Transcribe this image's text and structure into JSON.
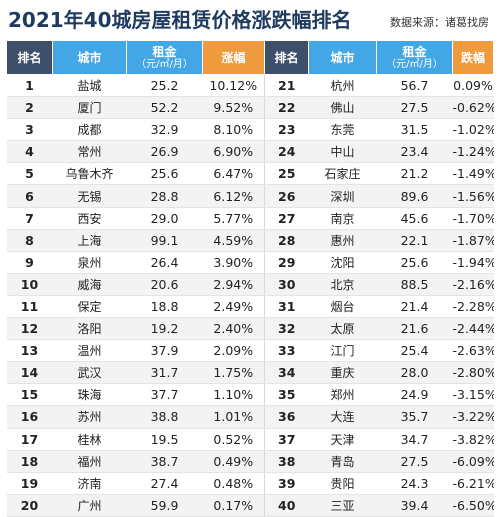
{
  "header": {
    "title": "2021年40城房屋租赁价格涨跌幅排名",
    "source": "数据来源：诸葛找房"
  },
  "columns": {
    "rank": "排名",
    "city": "城市",
    "rent": "租金",
    "rent_unit": "（元/㎡/月）",
    "rise": "涨幅",
    "fall": "跌幅"
  },
  "colors": {
    "dark": "#3d4f6b",
    "blue": "#43a7e6",
    "orange": "#f09a3e"
  },
  "rows": [
    {
      "l_rank": "1",
      "l_city": "盐城",
      "l_rent": "25.2",
      "l_change": "10.12%",
      "r_rank": "21",
      "r_city": "杭州",
      "r_rent": "56.7",
      "r_change": "0.09%"
    },
    {
      "l_rank": "2",
      "l_city": "厦门",
      "l_rent": "52.2",
      "l_change": "9.52%",
      "r_rank": "22",
      "r_city": "佛山",
      "r_rent": "27.5",
      "r_change": "-0.62%"
    },
    {
      "l_rank": "3",
      "l_city": "成都",
      "l_rent": "32.9",
      "l_change": "8.10%",
      "r_rank": "23",
      "r_city": "东莞",
      "r_rent": "31.5",
      "r_change": "-1.02%"
    },
    {
      "l_rank": "4",
      "l_city": "常州",
      "l_rent": "26.9",
      "l_change": "6.90%",
      "r_rank": "24",
      "r_city": "中山",
      "r_rent": "23.4",
      "r_change": "-1.24%"
    },
    {
      "l_rank": "5",
      "l_city": "乌鲁木齐",
      "l_rent": "25.6",
      "l_change": "6.47%",
      "r_rank": "25",
      "r_city": "石家庄",
      "r_rent": "21.2",
      "r_change": "-1.49%"
    },
    {
      "l_rank": "6",
      "l_city": "无锡",
      "l_rent": "28.8",
      "l_change": "6.12%",
      "r_rank": "26",
      "r_city": "深圳",
      "r_rent": "89.6",
      "r_change": "-1.56%"
    },
    {
      "l_rank": "7",
      "l_city": "西安",
      "l_rent": "29.0",
      "l_change": "5.77%",
      "r_rank": "27",
      "r_city": "南京",
      "r_rent": "45.6",
      "r_change": "-1.70%"
    },
    {
      "l_rank": "8",
      "l_city": "上海",
      "l_rent": "99.1",
      "l_change": "4.59%",
      "r_rank": "28",
      "r_city": "惠州",
      "r_rent": "22.1",
      "r_change": "-1.87%"
    },
    {
      "l_rank": "9",
      "l_city": "泉州",
      "l_rent": "26.4",
      "l_change": "3.90%",
      "r_rank": "29",
      "r_city": "沈阳",
      "r_rent": "25.6",
      "r_change": "-1.94%"
    },
    {
      "l_rank": "10",
      "l_city": "威海",
      "l_rent": "20.6",
      "l_change": "2.94%",
      "r_rank": "30",
      "r_city": "北京",
      "r_rent": "88.5",
      "r_change": "-2.16%"
    },
    {
      "l_rank": "11",
      "l_city": "保定",
      "l_rent": "18.8",
      "l_change": "2.49%",
      "r_rank": "31",
      "r_city": "烟台",
      "r_rent": "21.4",
      "r_change": "-2.28%"
    },
    {
      "l_rank": "12",
      "l_city": "洛阳",
      "l_rent": "19.2",
      "l_change": "2.40%",
      "r_rank": "32",
      "r_city": "太原",
      "r_rent": "21.6",
      "r_change": "-2.44%"
    },
    {
      "l_rank": "13",
      "l_city": "温州",
      "l_rent": "37.9",
      "l_change": "2.09%",
      "r_rank": "33",
      "r_city": "江门",
      "r_rent": "25.4",
      "r_change": "-2.63%"
    },
    {
      "l_rank": "14",
      "l_city": "武汉",
      "l_rent": "31.7",
      "l_change": "1.75%",
      "r_rank": "34",
      "r_city": "重庆",
      "r_rent": "28.0",
      "r_change": "-2.80%"
    },
    {
      "l_rank": "15",
      "l_city": "珠海",
      "l_rent": "37.7",
      "l_change": "1.10%",
      "r_rank": "35",
      "r_city": "郑州",
      "r_rent": "24.9",
      "r_change": "-3.15%"
    },
    {
      "l_rank": "16",
      "l_city": "苏州",
      "l_rent": "38.8",
      "l_change": "1.01%",
      "r_rank": "36",
      "r_city": "大连",
      "r_rent": "35.7",
      "r_change": "-3.22%"
    },
    {
      "l_rank": "17",
      "l_city": "桂林",
      "l_rent": "19.5",
      "l_change": "0.52%",
      "r_rank": "37",
      "r_city": "天津",
      "r_rent": "34.7",
      "r_change": "-3.82%"
    },
    {
      "l_rank": "18",
      "l_city": "福州",
      "l_rent": "38.7",
      "l_change": "0.49%",
      "r_rank": "38",
      "r_city": "青岛",
      "r_rent": "27.5",
      "r_change": "-6.09%"
    },
    {
      "l_rank": "19",
      "l_city": "济南",
      "l_rent": "27.4",
      "l_change": "0.48%",
      "r_rank": "39",
      "r_city": "贵阳",
      "r_rent": "24.3",
      "r_change": "-6.21%"
    },
    {
      "l_rank": "20",
      "l_city": "广州",
      "l_rent": "59.9",
      "l_change": "0.17%",
      "r_rank": "40",
      "r_city": "三亚",
      "r_rent": "39.4",
      "r_change": "-6.50%"
    }
  ]
}
